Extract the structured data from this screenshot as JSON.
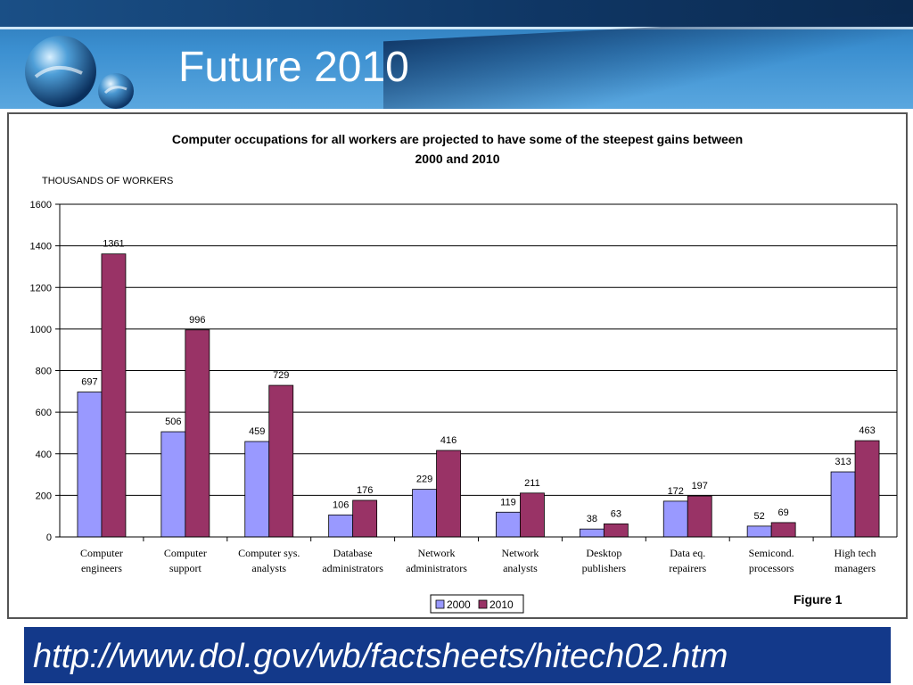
{
  "slide": {
    "title": "Future 2010",
    "source_url": "http://www.dol.gov/wb/factsheets/hitech02.htm"
  },
  "colors": {
    "series_2000": "#9999ff",
    "series_2010": "#993366",
    "header_blue": "#3b8fd0",
    "source_bar": "#13398a"
  },
  "chart_data": {
    "type": "bar",
    "title_line1": "Computer occupations for all workers are projected to have some of the steepest gains between",
    "title_line2": "2000 and 2010",
    "ylabel": "THOUSANDS OF WORKERS",
    "ylim": [
      0,
      1600
    ],
    "yticks": [
      0,
      200,
      400,
      600,
      800,
      1000,
      1200,
      1400,
      1600
    ],
    "grid": true,
    "legend_position": "bottom-center",
    "figure_label": "Figure 1",
    "categories": [
      [
        "Computer",
        "engineers"
      ],
      [
        "Computer",
        "support"
      ],
      [
        "Computer sys.",
        "analysts"
      ],
      [
        "Database",
        "administrators"
      ],
      [
        "Network",
        "administrators"
      ],
      [
        "Network",
        "analysts"
      ],
      [
        "Desktop",
        "publishers"
      ],
      [
        "Data eq.",
        "repairers"
      ],
      [
        "Semicond.",
        "processors"
      ],
      [
        "High tech",
        "managers"
      ]
    ],
    "series": [
      {
        "name": "2000",
        "values": [
          697,
          506,
          459,
          106,
          229,
          119,
          38,
          172,
          52,
          313
        ]
      },
      {
        "name": "2010",
        "values": [
          1361,
          996,
          729,
          176,
          416,
          211,
          63,
          197,
          69,
          463
        ]
      }
    ]
  }
}
